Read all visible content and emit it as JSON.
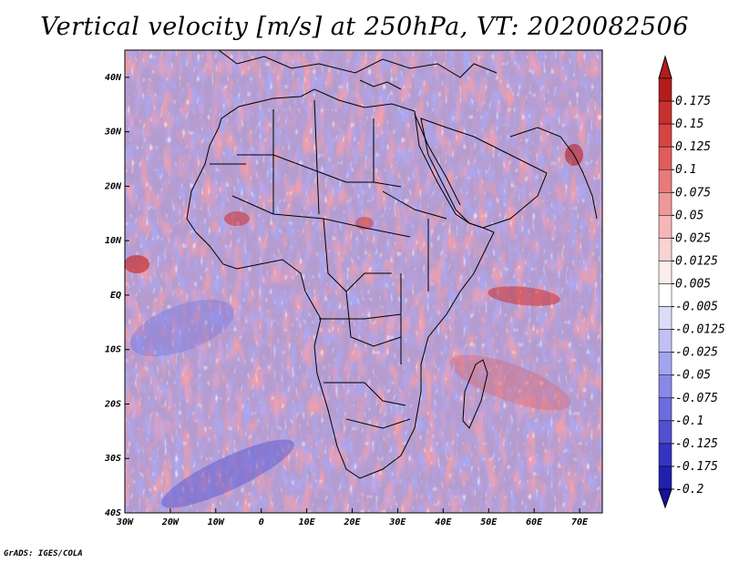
{
  "title": "Vertical velocity [m/s] at 250hPa, VT: 2020082506",
  "footer": "GrADS: IGES/COLA",
  "map": {
    "projection": "latlon",
    "lon_range": [
      -30,
      75
    ],
    "lat_range": [
      -40,
      45
    ],
    "x_ticks": [
      {
        "value": -30,
        "label": "30W"
      },
      {
        "value": -20,
        "label": "20W"
      },
      {
        "value": -10,
        "label": "10W"
      },
      {
        "value": 0,
        "label": "0"
      },
      {
        "value": 10,
        "label": "10E"
      },
      {
        "value": 20,
        "label": "20E"
      },
      {
        "value": 30,
        "label": "30E"
      },
      {
        "value": 40,
        "label": "40E"
      },
      {
        "value": 50,
        "label": "50E"
      },
      {
        "value": 60,
        "label": "60E"
      },
      {
        "value": 70,
        "label": "70E"
      }
    ],
    "y_ticks": [
      {
        "value": 40,
        "label": "40N"
      },
      {
        "value": 30,
        "label": "30N"
      },
      {
        "value": 20,
        "label": "20N"
      },
      {
        "value": 10,
        "label": "10N"
      },
      {
        "value": 0,
        "label": "EQ"
      },
      {
        "value": -10,
        "label": "10S"
      },
      {
        "value": -20,
        "label": "20S"
      },
      {
        "value": -30,
        "label": "30S"
      },
      {
        "value": -40,
        "label": "40S"
      }
    ],
    "outline_color": "#000000"
  },
  "colorbar": {
    "orientation": "vertical",
    "top_arrow_color": "#b41c1c",
    "bottom_arrow_color": "#1a10a0",
    "levels": [
      {
        "label": "0.175",
        "color": "#b41c1c"
      },
      {
        "label": "0.15",
        "color": "#c83030"
      },
      {
        "label": "0.125",
        "color": "#d64444"
      },
      {
        "label": "0.1",
        "color": "#e05c5c"
      },
      {
        "label": "0.075",
        "color": "#e87a7a"
      },
      {
        "label": "0.05",
        "color": "#ef9898"
      },
      {
        "label": "0.025",
        "color": "#f5b6b6"
      },
      {
        "label": "0.0125",
        "color": "#f9d2d2"
      },
      {
        "label": "0.005",
        "color": "#fcecec"
      },
      {
        "label": "-0.005",
        "color": "#ffffff"
      },
      {
        "label": "-0.0125",
        "color": "#dcdcfa"
      },
      {
        "label": "-0.025",
        "color": "#c0c0f4"
      },
      {
        "label": "-0.05",
        "color": "#a4a4ee"
      },
      {
        "label": "-0.075",
        "color": "#8888e6"
      },
      {
        "label": "-0.1",
        "color": "#6c6cdc"
      },
      {
        "label": "-0.125",
        "color": "#5050d0"
      },
      {
        "label": "-0.175",
        "color": "#3434c0"
      },
      {
        "label": "-0.2",
        "color": "#2020ae"
      }
    ]
  }
}
